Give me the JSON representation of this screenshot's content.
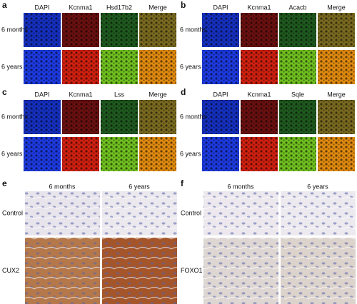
{
  "fluorescence_panels": [
    {
      "label": "a",
      "columns": [
        "DAPI",
        "Kcnma1",
        "Hsd17b2",
        "Merge"
      ],
      "rows": [
        "6 months",
        "6 years"
      ]
    },
    {
      "label": "b",
      "columns": [
        "DAPI",
        "Kcnma1",
        "Acacb",
        "Merge"
      ],
      "rows": [
        "6 months",
        "6 years"
      ]
    },
    {
      "label": "c",
      "columns": [
        "DAPI",
        "Kcnma1",
        "Lss",
        "Merge"
      ],
      "rows": [
        "6 months",
        "6 years"
      ]
    },
    {
      "label": "d",
      "columns": [
        "DAPI",
        "Kcnma1",
        "Sqle",
        "Merge"
      ],
      "rows": [
        "6 months",
        "6 years"
      ]
    }
  ],
  "ihc_panels": [
    {
      "label": "e",
      "columns": [
        "6 months",
        "6 years"
      ],
      "rows": [
        "Control",
        "CUX2"
      ]
    },
    {
      "label": "f",
      "columns": [
        "6 months",
        "6 years"
      ],
      "rows": [
        "Control",
        "FOXO1"
      ]
    }
  ]
}
